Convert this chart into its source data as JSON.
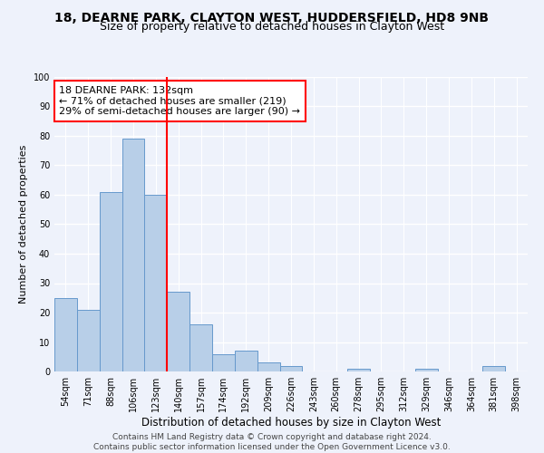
{
  "title_line1": "18, DEARNE PARK, CLAYTON WEST, HUDDERSFIELD, HD8 9NB",
  "title_line2": "Size of property relative to detached houses in Clayton West",
  "xlabel": "Distribution of detached houses by size in Clayton West",
  "ylabel": "Number of detached properties",
  "categories": [
    "54sqm",
    "71sqm",
    "88sqm",
    "106sqm",
    "123sqm",
    "140sqm",
    "157sqm",
    "174sqm",
    "192sqm",
    "209sqm",
    "226sqm",
    "243sqm",
    "260sqm",
    "278sqm",
    "295sqm",
    "312sqm",
    "329sqm",
    "346sqm",
    "364sqm",
    "381sqm",
    "398sqm"
  ],
  "values": [
    25,
    21,
    61,
    79,
    60,
    27,
    16,
    6,
    7,
    3,
    2,
    0,
    0,
    1,
    0,
    0,
    1,
    0,
    0,
    2,
    0
  ],
  "bar_color": "#b8cfe8",
  "bar_edge_color": "#6699cc",
  "vline_x": 4.5,
  "vline_color": "red",
  "annotation_text": "18 DEARNE PARK: 132sqm\n← 71% of detached houses are smaller (219)\n29% of semi-detached houses are larger (90) →",
  "annotation_box_color": "white",
  "annotation_box_edge_color": "red",
  "ylim": [
    0,
    100
  ],
  "yticks": [
    0,
    10,
    20,
    30,
    40,
    50,
    60,
    70,
    80,
    90,
    100
  ],
  "footer_line1": "Contains HM Land Registry data © Crown copyright and database right 2024.",
  "footer_line2": "Contains public sector information licensed under the Open Government Licence v3.0.",
  "background_color": "#eef2fb",
  "grid_color": "white",
  "title_fontsize": 10,
  "subtitle_fontsize": 9,
  "tick_fontsize": 7,
  "ylabel_fontsize": 8,
  "xlabel_fontsize": 8.5,
  "footer_fontsize": 6.5,
  "annotation_fontsize": 8
}
